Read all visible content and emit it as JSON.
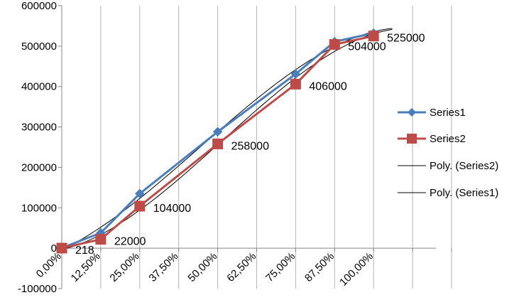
{
  "chart_data": {
    "type": "line",
    "title": "",
    "xlabel": "",
    "ylabel": "",
    "x_tick_labels": [
      "0,00%",
      "12,50%",
      "25,00%",
      "37,50%",
      "50,00%",
      "62,50%",
      "75,00%",
      "87,50%",
      "100,00%"
    ],
    "y_tick_labels": [
      "-100000",
      "0",
      "100000",
      "200000",
      "300000",
      "400000",
      "500000",
      "600000"
    ],
    "y_tick_values": [
      -100000,
      0,
      100000,
      200000,
      300000,
      400000,
      500000,
      600000
    ],
    "ylim": [
      -100000,
      600000
    ],
    "x_domain": [
      0,
      1.2
    ],
    "grid": {
      "vertical": true,
      "horizontal": false
    },
    "legend_position": "right",
    "colors": {
      "series1": "#4a7ebb",
      "series2": "#be4b48",
      "trend": "#000000",
      "grid": "#b4b4b4",
      "axis": "#868686"
    },
    "series": [
      {
        "name": "Series1",
        "marker": "diamond",
        "x": [
          0,
          0.125,
          0.25,
          0.5,
          0.75,
          0.875,
          1.0
        ],
        "values": [
          500,
          38000,
          135000,
          288000,
          431000,
          511000,
          532000
        ]
      },
      {
        "name": "Series2",
        "marker": "square",
        "x": [
          0,
          0.125,
          0.25,
          0.5,
          0.75,
          0.875,
          1.0
        ],
        "values": [
          218,
          22000,
          104000,
          258000,
          406000,
          504000,
          525000
        ],
        "data_labels": [
          "218",
          "22000",
          "104000",
          "258000",
          "406000",
          "504000",
          "525000"
        ]
      }
    ],
    "trendlines": [
      {
        "name": "Poly. (Series2)",
        "of": "Series2"
      },
      {
        "name": "Poly. (Series1)",
        "of": "Series1"
      }
    ]
  }
}
